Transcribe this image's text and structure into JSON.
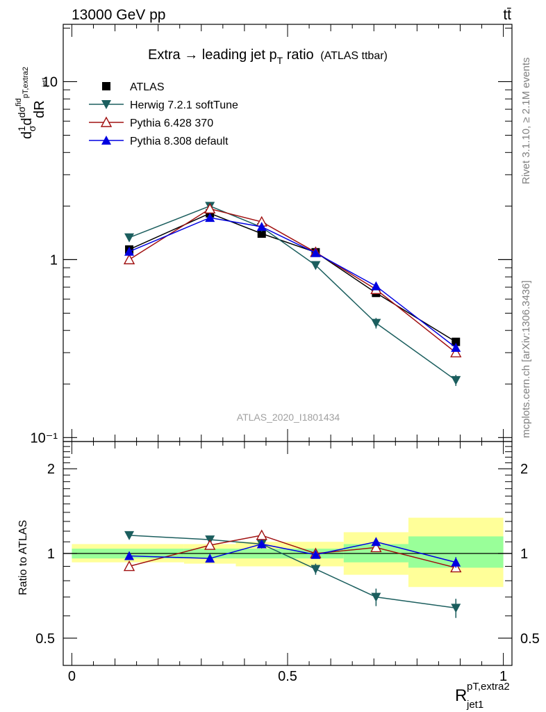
{
  "header": {
    "left": "13000 GeV pp",
    "right": "tt̄"
  },
  "side_labels": {
    "rivet": "Rivet 3.1.10, ≥ 2.1M events",
    "mcplots": "mcplots.cern.ch [arXiv:1306.3436]"
  },
  "watermark": "ATLAS_2020_I1801434",
  "colors": {
    "atlas": "#000000",
    "herwig": "#1b5e5e",
    "pythia6": "#a01010",
    "pythia8": "#0000e0",
    "band_inner": "#99ff99",
    "band_outer": "#ffff99"
  },
  "chart_data": [
    {
      "type": "line",
      "title": "Extra → leading jet p_T ratio (ATLAS ttbar)",
      "title_main": "Extra → leading jet p",
      "title_sub": "T",
      "title_tail": " ratio",
      "title_paren": "(ATLAS ttbar)",
      "ylabel": "dσ^fid/dR_jet1^pT,extra2 · 1/σ",
      "yscale": "log",
      "ylim": [
        0.095,
        21
      ],
      "xlim": [
        -0.02,
        1.02
      ],
      "x": [
        0.133,
        0.32,
        0.44,
        0.565,
        0.705,
        0.89
      ],
      "y_tick_labels": [
        "10⁻¹",
        "1",
        "10"
      ],
      "series": [
        {
          "name": "ATLAS",
          "key": "atlas",
          "marker": "square",
          "values": [
            1.14,
            1.82,
            1.4,
            1.1,
            0.65,
            0.345
          ],
          "errors": [
            0.02,
            0.03,
            0.03,
            0.02,
            0.02,
            0.015
          ]
        },
        {
          "name": "Herwig 7.2.1 softTune",
          "key": "herwig",
          "marker": "triangle-down",
          "values": [
            1.33,
            2.0,
            1.52,
            0.93,
            0.44,
            0.21
          ],
          "errors": [
            0.02,
            0.03,
            0.03,
            0.04,
            0.03,
            0.015
          ]
        },
        {
          "name": "Pythia 6.428 370",
          "key": "pythia6",
          "marker": "triangle-open",
          "values": [
            1.0,
            1.93,
            1.63,
            1.1,
            0.68,
            0.3
          ],
          "errors": [
            0.015,
            0.03,
            0.03,
            0.02,
            0.03,
            0.012
          ]
        },
        {
          "name": "Pythia 8.308 default",
          "key": "pythia8",
          "marker": "triangle-up",
          "values": [
            1.11,
            1.72,
            1.53,
            1.09,
            0.71,
            0.32
          ],
          "errors": [
            0.015,
            0.03,
            0.03,
            0.02,
            0.03,
            0.012
          ]
        }
      ]
    },
    {
      "type": "line",
      "ylabel": "Ratio to ATLAS",
      "yscale": "log",
      "ylim": [
        0.4,
        2.5
      ],
      "xlim": [
        -0.02,
        1.02
      ],
      "xlabel": "R",
      "xlabel_sup": "pT,extra2",
      "xlabel_sub": "jet1",
      "x_ticks": [
        0,
        0.5,
        1
      ],
      "x_tick_labels": [
        "0",
        "0.5",
        "1"
      ],
      "y_ticks": [
        0.5,
        1,
        2
      ],
      "y_tick_labels": [
        "0.5",
        "1",
        "2"
      ],
      "x": [
        0.133,
        0.32,
        0.44,
        0.565,
        0.705,
        0.89
      ],
      "bands": [
        {
          "xmin": 0.0,
          "xmax": 0.26,
          "inner": [
            0.96,
            1.04
          ],
          "outer": [
            0.93,
            1.08
          ]
        },
        {
          "xmin": 0.26,
          "xmax": 0.38,
          "inner": [
            0.96,
            1.04
          ],
          "outer": [
            0.92,
            1.08
          ]
        },
        {
          "xmin": 0.38,
          "xmax": 0.63,
          "inner": [
            0.96,
            1.04
          ],
          "outer": [
            0.9,
            1.1
          ]
        },
        {
          "xmin": 0.63,
          "xmax": 0.78,
          "inner": [
            0.93,
            1.08
          ],
          "outer": [
            0.84,
            1.19
          ]
        },
        {
          "xmin": 0.78,
          "xmax": 1.0,
          "inner": [
            0.89,
            1.15
          ],
          "outer": [
            0.76,
            1.34
          ]
        }
      ],
      "series": [
        {
          "name": "Herwig 7.2.1 softTune",
          "key": "herwig",
          "marker": "triangle-down",
          "values": [
            1.16,
            1.12,
            1.08,
            0.88,
            0.7,
            0.64
          ],
          "errors": [
            0.02,
            0.02,
            0.02,
            0.04,
            0.05,
            0.05
          ]
        },
        {
          "name": "Pythia 6.428 370",
          "key": "pythia6",
          "marker": "triangle-open",
          "values": [
            0.9,
            1.07,
            1.16,
            1.0,
            1.05,
            0.89
          ],
          "errors": [
            0.015,
            0.02,
            0.02,
            0.02,
            0.03,
            0.03
          ]
        },
        {
          "name": "Pythia 8.308 default",
          "key": "pythia8",
          "marker": "triangle-up",
          "values": [
            0.98,
            0.96,
            1.08,
            0.99,
            1.1,
            0.93
          ],
          "errors": [
            0.02,
            0.02,
            0.02,
            0.03,
            0.03,
            0.04
          ]
        }
      ]
    }
  ]
}
